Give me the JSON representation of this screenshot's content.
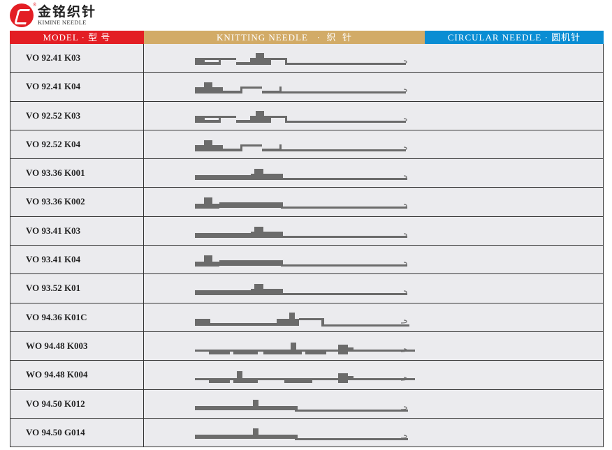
{
  "brand": {
    "name_cn": "金铭织针",
    "name_en": "KIMINE NEEDLE",
    "reg_mark": "®"
  },
  "header": {
    "model": "MODEL · 型 号",
    "knitting": "KNITTING NEEDLE   ·  织  针",
    "circular": "CIRCULAR NEEDLE · 圆机针"
  },
  "rows": [
    {
      "model": "VO 92.41 K03",
      "shape": "A"
    },
    {
      "model": "VO 92.41 K04",
      "shape": "B"
    },
    {
      "model": "VO 92.52 K03",
      "shape": "A"
    },
    {
      "model": "VO 92.52 K04",
      "shape": "B"
    },
    {
      "model": "VO 93.36 K001",
      "shape": "C"
    },
    {
      "model": "VO 93.36 K002",
      "shape": "G"
    },
    {
      "model": "VO 93.41 K03",
      "shape": "C"
    },
    {
      "model": "VO 93.41 K04",
      "shape": "G"
    },
    {
      "model": "VO 93.52 K01",
      "shape": "C"
    },
    {
      "model": "VO 94.36 K01C",
      "shape": "D"
    },
    {
      "model": "WO 94.48 K003",
      "shape": "E"
    },
    {
      "model": "WO 94.48 K004",
      "shape": "H"
    },
    {
      "model": "VO 94.50 K012",
      "shape": "F"
    },
    {
      "model": "VO 94.50 G014",
      "shape": "F"
    }
  ],
  "colors": {
    "red": "#e31e24",
    "gold": "#d2ab67",
    "blue": "#0a8dd3",
    "needle": "#6b6b6b"
  }
}
